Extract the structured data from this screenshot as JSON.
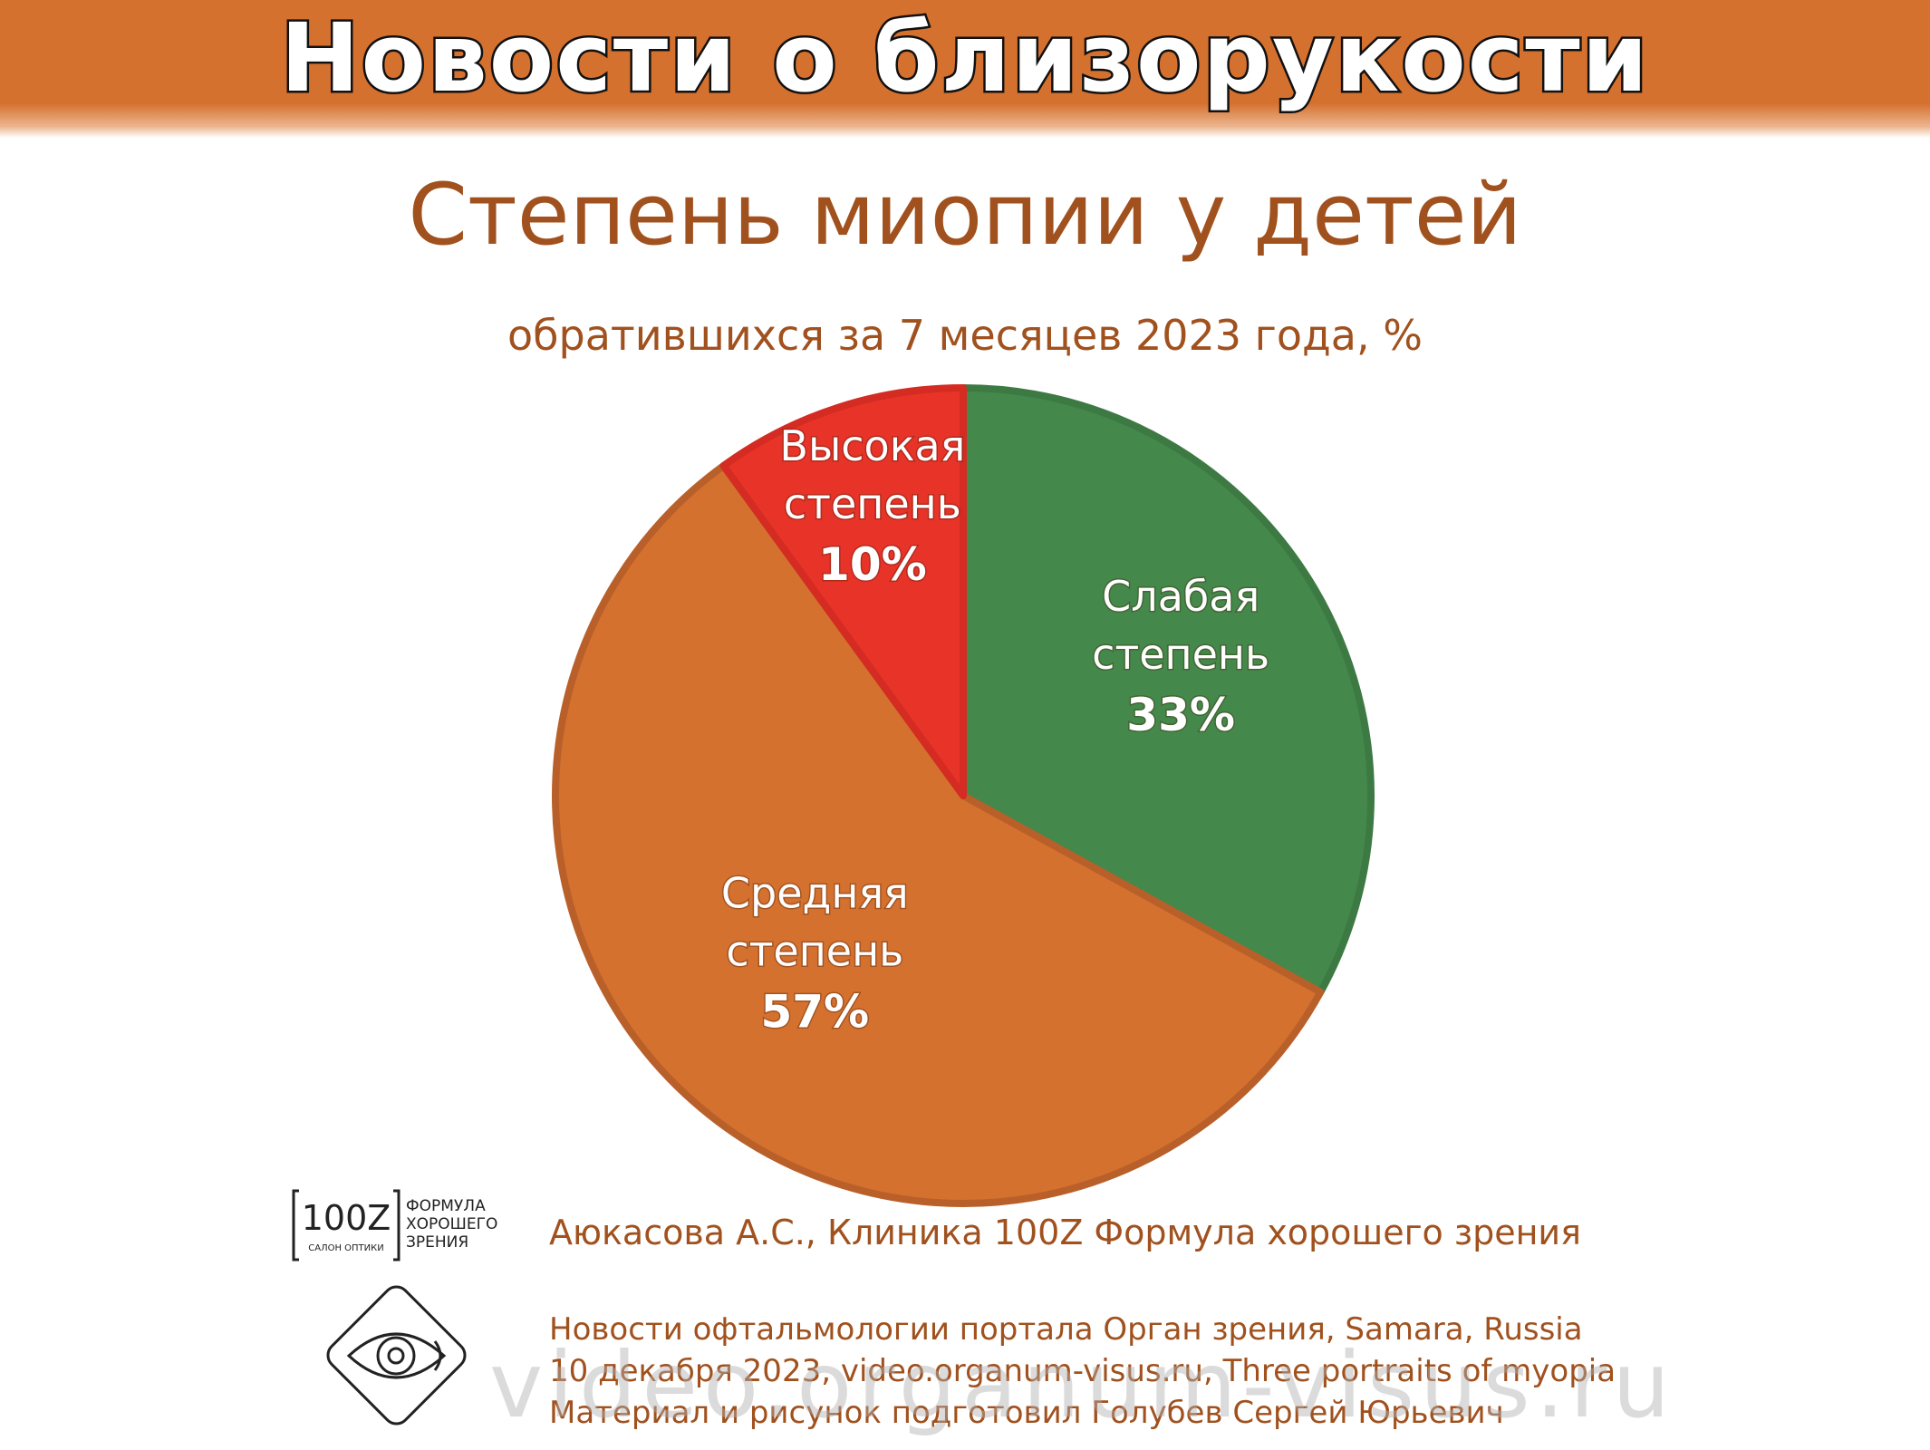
{
  "header": {
    "banner_title": "Новости о близорукости"
  },
  "chart_data": {
    "type": "pie",
    "title": "Степень миопии у детей",
    "subtitle": "обратившихся за 7 месяцев 2023 года, %",
    "slices": [
      {
        "name_line1": "Слабая",
        "name_line2": "степень",
        "value": 33,
        "label": "33%",
        "color": "#44894b"
      },
      {
        "name_line1": "Средняя",
        "name_line2": "степень",
        "value": 57,
        "label": "57%",
        "color": "#d5712f"
      },
      {
        "name_line1": "Высокая",
        "name_line2": "степень",
        "value": 10,
        "label": "10%",
        "color": "#e83328"
      }
    ]
  },
  "logo_100z": {
    "mark": "100Z",
    "sub": "САЛОН ОПТИКИ",
    "name_lines": [
      "ФОРМУЛА",
      "ХОРОШЕГО",
      "ЗРЕНИЯ"
    ]
  },
  "eye_logo": {
    "icon": "eye-in-diamond-icon"
  },
  "credits": {
    "author": "Аюкасова А.С., Клиника 100Z Формула хорошего зрения",
    "source_lines": [
      "Новости офтальмологии портала Орган зрения, Samara, Russia",
      "10 декабря 2023, video.organum-visus.ru, Three portraits of myopia",
      "Материал и рисунок подготовил Голубев Сергей Юрьевич"
    ]
  },
  "watermark": "video.organum-visus.ru"
}
